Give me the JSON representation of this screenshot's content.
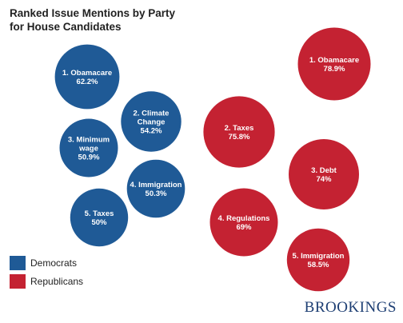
{
  "title": {
    "line1": "Ranked Issue Mentions by Party",
    "line2": "for House Candidates"
  },
  "legend": [
    {
      "label": "Democrats",
      "color": "#1f5a96"
    },
    {
      "label": "Republicans",
      "color": "#c42232"
    }
  ],
  "brand": "BROOKINGS",
  "chart_data": {
    "type": "bubble",
    "title": "Ranked Issue Mentions by Party for House Candidates",
    "series": [
      {
        "name": "Democrats",
        "color": "#1f5a96",
        "points": [
          {
            "rank": 1,
            "issue": "Obamacare",
            "label_lines": [
              "1. Obamacare"
            ],
            "value": 62.2,
            "value_label": "62.2%"
          },
          {
            "rank": 2,
            "issue": "Climate Change",
            "label_lines": [
              "2. Climate",
              "Change"
            ],
            "value": 54.2,
            "value_label": "54.2%"
          },
          {
            "rank": 3,
            "issue": "Minimum wage",
            "label_lines": [
              "3. Minimum",
              "wage"
            ],
            "value": 50.9,
            "value_label": "50.9%"
          },
          {
            "rank": 4,
            "issue": "Immigration",
            "label_lines": [
              "4. Immigration"
            ],
            "value": 50.3,
            "value_label": "50.3%"
          },
          {
            "rank": 5,
            "issue": "Taxes",
            "label_lines": [
              "5. Taxes"
            ],
            "value": 50,
            "value_label": "50%"
          }
        ]
      },
      {
        "name": "Republicans",
        "color": "#c42232",
        "points": [
          {
            "rank": 1,
            "issue": "Obamacare",
            "label_lines": [
              "1. Obamacare"
            ],
            "value": 78.9,
            "value_label": "78.9%"
          },
          {
            "rank": 2,
            "issue": "Taxes",
            "label_lines": [
              "2. Taxes"
            ],
            "value": 75.8,
            "value_label": "75.8%"
          },
          {
            "rank": 3,
            "issue": "Debt",
            "label_lines": [
              "3. Debt"
            ],
            "value": 74,
            "value_label": "74%"
          },
          {
            "rank": 4,
            "issue": "Regulations",
            "label_lines": [
              "4. Regulations"
            ],
            "value": 69,
            "value_label": "69%"
          },
          {
            "rank": 5,
            "issue": "Immigration",
            "label_lines": [
              "5. Immigration"
            ],
            "value": 58.5,
            "value_label": "58.5%"
          }
        ]
      }
    ]
  }
}
